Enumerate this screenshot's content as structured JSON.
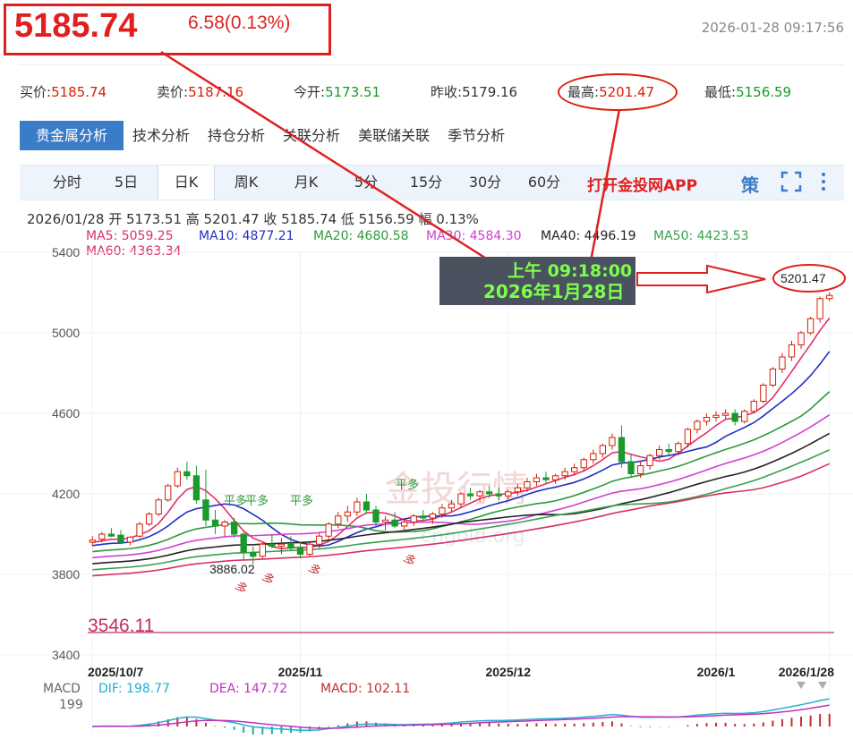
{
  "header": {
    "price": "5185.74",
    "change": "6.58(0.13%)",
    "datetime": "2026-01-28 09:17:56"
  },
  "quote": {
    "bid_label": "买价:",
    "bid": "5185.74",
    "ask_label": "卖价:",
    "ask": "5187.16",
    "open_label": "今开:",
    "open": "5173.51",
    "prev_label": "昨收:",
    "prev": "5179.16",
    "high_label": "最高:",
    "high": "5201.47",
    "low_label": "最低:",
    "low": "5156.59"
  },
  "tabs": [
    "贵金属分析",
    "技术分析",
    "持仓分析",
    "关联分析",
    "美联储关联",
    "季节分析"
  ],
  "periods": [
    "分时",
    "5日",
    "日K",
    "周K",
    "月K",
    "5分",
    "15分",
    "30分",
    "60分"
  ],
  "app_link": "打开金投网APP",
  "icons": [
    "strategy-icon",
    "fullscreen-icon",
    "more-icon"
  ],
  "strategy_glyph": "策",
  "ohlc_line": "2026/01/28  开 5173.51  高 5201.47  收 5185.74  低 5156.59  幅 0.13%",
  "ma_legend": [
    {
      "label": "MA5: 5059.25",
      "color": "#e0306a"
    },
    {
      "label": "MA10: 4877.21",
      "color": "#2030c0"
    },
    {
      "label": "MA20: 4680.58",
      "color": "#2e9a3a"
    },
    {
      "label": "MA30: 4584.30",
      "color": "#d040d0"
    },
    {
      "label": "MA40: 4496.19",
      "color": "#222222"
    },
    {
      "label": "MA50: 4423.53",
      "color": "#3aa04a"
    },
    {
      "label": "MA60: 4363.34",
      "color": "#d83060"
    }
  ],
  "annotation": {
    "time_line1": "上午 09:18:00",
    "time_line2": "2026年1月28日",
    "high_callout": "5201.47"
  },
  "chart_labels": {
    "low_marker": "3886.02",
    "min_line": "3546.11",
    "signal_flat": "平多",
    "signal_long": "多",
    "watermark": "金投行情",
    "watermark_url": "cngold.org"
  },
  "macd": {
    "label": "MACD",
    "dif": "DIF: 198.77",
    "dea": "DEA: 147.72",
    "macd_val": "MACD: 102.11",
    "axis_tick": "199"
  },
  "chart_data": {
    "type": "candlestick",
    "y_ticks": [
      5400,
      5000,
      4600,
      4200,
      3800,
      3400
    ],
    "ylim": [
      3400,
      5400
    ],
    "x_tick_labels": [
      "2025/10/7",
      "2025/11",
      "2025/12",
      "2026/1",
      "2026/1/28"
    ],
    "min_line": 3546.11,
    "candles": [
      [
        3960,
        3990,
        3940,
        3970
      ],
      [
        3975,
        4010,
        3960,
        4000
      ],
      [
        4000,
        4030,
        3985,
        3990
      ],
      [
        3995,
        4020,
        3950,
        3960
      ],
      [
        3960,
        3990,
        3945,
        3985
      ],
      [
        3990,
        4060,
        3980,
        4050
      ],
      [
        4050,
        4110,
        4040,
        4100
      ],
      [
        4100,
        4180,
        4090,
        4170
      ],
      [
        4170,
        4250,
        4160,
        4240
      ],
      [
        4240,
        4330,
        4230,
        4310
      ],
      [
        4310,
        4360,
        4270,
        4290
      ],
      [
        4290,
        4340,
        4150,
        4170
      ],
      [
        4170,
        4320,
        4040,
        4070
      ],
      [
        4070,
        4120,
        4000,
        4040
      ],
      [
        4040,
        4070,
        3990,
        4060
      ],
      [
        4060,
        4080,
        3980,
        4000
      ],
      [
        4000,
        4010,
        3870,
        3910
      ],
      [
        3910,
        3940,
        3850,
        3890
      ],
      [
        3890,
        3960,
        3880,
        3950
      ],
      [
        3950,
        4000,
        3930,
        3940
      ],
      [
        3940,
        3980,
        3900,
        3950
      ],
      [
        3950,
        3990,
        3920,
        3930
      ],
      [
        3930,
        3960,
        3880,
        3900
      ],
      [
        3900,
        3960,
        3890,
        3950
      ],
      [
        3950,
        4010,
        3930,
        3990
      ],
      [
        3990,
        4060,
        3970,
        4050
      ],
      [
        4050,
        4110,
        4030,
        4090
      ],
      [
        4090,
        4140,
        4060,
        4110
      ],
      [
        4110,
        4180,
        4090,
        4160
      ],
      [
        4160,
        4200,
        4100,
        4120
      ],
      [
        4120,
        4140,
        4040,
        4060
      ],
      [
        4060,
        4090,
        4020,
        4070
      ],
      [
        4070,
        4110,
        4030,
        4040
      ],
      [
        4040,
        4080,
        4010,
        4060
      ],
      [
        4060,
        4100,
        4040,
        4090
      ],
      [
        4090,
        4120,
        4060,
        4080
      ],
      [
        4080,
        4110,
        4050,
        4100
      ],
      [
        4100,
        4150,
        4080,
        4130
      ],
      [
        4130,
        4170,
        4110,
        4150
      ],
      [
        4150,
        4210,
        4130,
        4200
      ],
      [
        4200,
        4230,
        4170,
        4190
      ],
      [
        4190,
        4220,
        4160,
        4210
      ],
      [
        4210,
        4240,
        4180,
        4200
      ],
      [
        4200,
        4230,
        4170,
        4190
      ],
      [
        4190,
        4220,
        4170,
        4210
      ],
      [
        4210,
        4250,
        4190,
        4230
      ],
      [
        4230,
        4280,
        4210,
        4260
      ],
      [
        4260,
        4300,
        4240,
        4280
      ],
      [
        4280,
        4310,
        4250,
        4270
      ],
      [
        4270,
        4300,
        4250,
        4290
      ],
      [
        4290,
        4330,
        4270,
        4310
      ],
      [
        4310,
        4350,
        4290,
        4330
      ],
      [
        4330,
        4380,
        4310,
        4370
      ],
      [
        4370,
        4420,
        4350,
        4400
      ],
      [
        4400,
        4450,
        4380,
        4440
      ],
      [
        4440,
        4500,
        4420,
        4480
      ],
      [
        4480,
        4540,
        4330,
        4360
      ],
      [
        4360,
        4400,
        4280,
        4300
      ],
      [
        4300,
        4360,
        4280,
        4340
      ],
      [
        4340,
        4400,
        4320,
        4390
      ],
      [
        4390,
        4440,
        4370,
        4420
      ],
      [
        4420,
        4450,
        4390,
        4410
      ],
      [
        4410,
        4460,
        4390,
        4450
      ],
      [
        4450,
        4530,
        4430,
        4520
      ],
      [
        4520,
        4570,
        4500,
        4560
      ],
      [
        4560,
        4600,
        4540,
        4580
      ],
      [
        4580,
        4610,
        4560,
        4590
      ],
      [
        4590,
        4620,
        4570,
        4600
      ],
      [
        4600,
        4620,
        4540,
        4560
      ],
      [
        4560,
        4620,
        4550,
        4610
      ],
      [
        4610,
        4670,
        4600,
        4660
      ],
      [
        4660,
        4750,
        4650,
        4740
      ],
      [
        4740,
        4830,
        4730,
        4820
      ],
      [
        4820,
        4900,
        4800,
        4880
      ],
      [
        4880,
        4960,
        4860,
        4940
      ],
      [
        4940,
        5010,
        4920,
        5000
      ],
      [
        5000,
        5080,
        4990,
        5070
      ],
      [
        5070,
        5180,
        5050,
        5170
      ],
      [
        5170,
        5201.47,
        5156.59,
        5185.74
      ]
    ],
    "macd_dif_range": [
      -60,
      199
    ]
  }
}
